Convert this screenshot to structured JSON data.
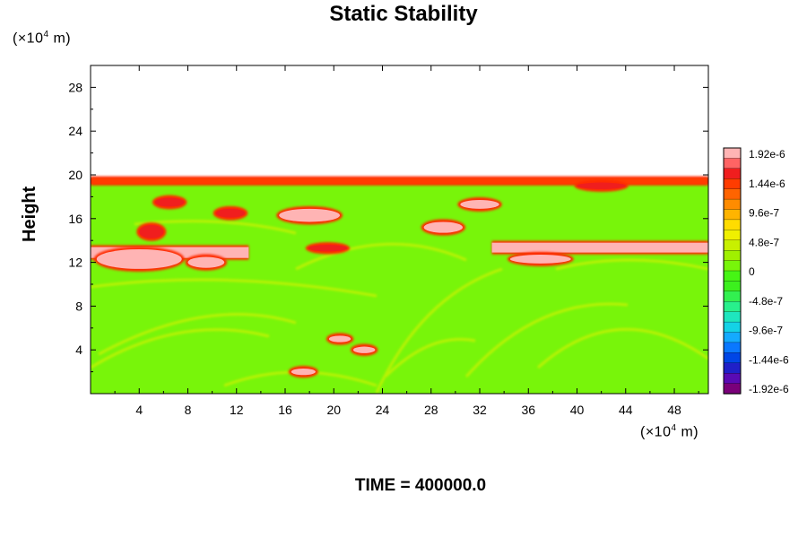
{
  "chart_data": {
    "type": "heatmap",
    "title": "Static Stability",
    "ylabel": "Height",
    "x_unit_prefix": "(×10",
    "x_unit_exp": "4",
    "x_unit_suffix": " m)",
    "y_unit_prefix": "(×10",
    "y_unit_exp": "4",
    "y_unit_suffix": " m)",
    "xlim": [
      0,
      50.8
    ],
    "ylim": [
      0,
      30
    ],
    "x_ticks": [
      4,
      8,
      12,
      16,
      20,
      24,
      28,
      32,
      36,
      40,
      44,
      48
    ],
    "y_ticks": [
      4,
      8,
      12,
      16,
      20,
      24,
      28
    ],
    "data_top": 19.7,
    "colorbar": {
      "labels": [
        "1.92e-6",
        "1.44e-6",
        "9.6e-7",
        "4.8e-7",
        "0",
        "-4.8e-7",
        "-9.6e-7",
        "-1.44e-6",
        "-1.92e-6"
      ],
      "min": -1.92e-06,
      "max": 1.92e-06,
      "colors": [
        "#7a007a",
        "#5a0ab4",
        "#2020c8",
        "#0046e6",
        "#0a78ff",
        "#14aaff",
        "#14d2e6",
        "#1ee6be",
        "#28f08c",
        "#32f050",
        "#3cf01e",
        "#46f514",
        "#78f50a",
        "#a0f000",
        "#c8f000",
        "#f0f000",
        "#ffdc00",
        "#ffb400",
        "#ff8c00",
        "#ff6400",
        "#ff3c00",
        "#f01e1e",
        "#ff6464",
        "#ffb4b4"
      ]
    },
    "background_value": 0,
    "features": [
      {
        "kind": "band",
        "x0": 0,
        "x1": 13,
        "y0": 12.4,
        "y1": 13.4,
        "value": 1.92e-06
      },
      {
        "kind": "band",
        "x0": 33,
        "x1": 50.8,
        "y0": 12.9,
        "y1": 13.8,
        "value": 1.92e-06
      },
      {
        "kind": "band",
        "x0": 0,
        "x1": 50.8,
        "y0": 19.2,
        "y1": 19.7,
        "value": 1.4e-06
      },
      {
        "kind": "blob",
        "x": 4.0,
        "y": 12.3,
        "rx": 3.5,
        "ry": 0.9,
        "value": 1.92e-06
      },
      {
        "kind": "blob",
        "x": 18.0,
        "y": 16.3,
        "rx": 2.5,
        "ry": 0.6,
        "value": 1.92e-06
      },
      {
        "kind": "blob",
        "x": 29.0,
        "y": 15.2,
        "rx": 1.6,
        "ry": 0.5,
        "value": 1.92e-06
      },
      {
        "kind": "blob",
        "x": 32.0,
        "y": 17.3,
        "rx": 1.6,
        "ry": 0.4,
        "value": 1.92e-06
      },
      {
        "kind": "blob",
        "x": 37.0,
        "y": 12.3,
        "rx": 2.5,
        "ry": 0.4,
        "value": 1.92e-06
      },
      {
        "kind": "blob",
        "x": 9.5,
        "y": 12.0,
        "rx": 1.5,
        "ry": 0.5,
        "value": 1.92e-06
      },
      {
        "kind": "blob",
        "x": 19.5,
        "y": 13.3,
        "rx": 1.6,
        "ry": 0.3,
        "value": 1.44e-06
      },
      {
        "kind": "blob",
        "x": 20.5,
        "y": 5.0,
        "rx": 0.9,
        "ry": 0.3,
        "value": 1.92e-06
      },
      {
        "kind": "blob",
        "x": 22.5,
        "y": 4.0,
        "rx": 0.9,
        "ry": 0.3,
        "value": 1.92e-06
      },
      {
        "kind": "blob",
        "x": 17.5,
        "y": 2.0,
        "rx": 1.0,
        "ry": 0.3,
        "value": 1.92e-06
      },
      {
        "kind": "blob",
        "x": 11.5,
        "y": 16.5,
        "rx": 1.2,
        "ry": 0.4,
        "value": 1.44e-06
      },
      {
        "kind": "blob",
        "x": 6.5,
        "y": 17.5,
        "rx": 1.2,
        "ry": 0.4,
        "value": 1.44e-06
      },
      {
        "kind": "blob",
        "x": 42.0,
        "y": 19.0,
        "rx": 2.0,
        "ry": 0.3,
        "value": 1.44e-06
      },
      {
        "kind": "blob",
        "x": 5.0,
        "y": 14.8,
        "rx": 1.0,
        "ry": 0.6,
        "value": 1.44e-06
      }
    ]
  },
  "time_label": "TIME = 400000.0"
}
